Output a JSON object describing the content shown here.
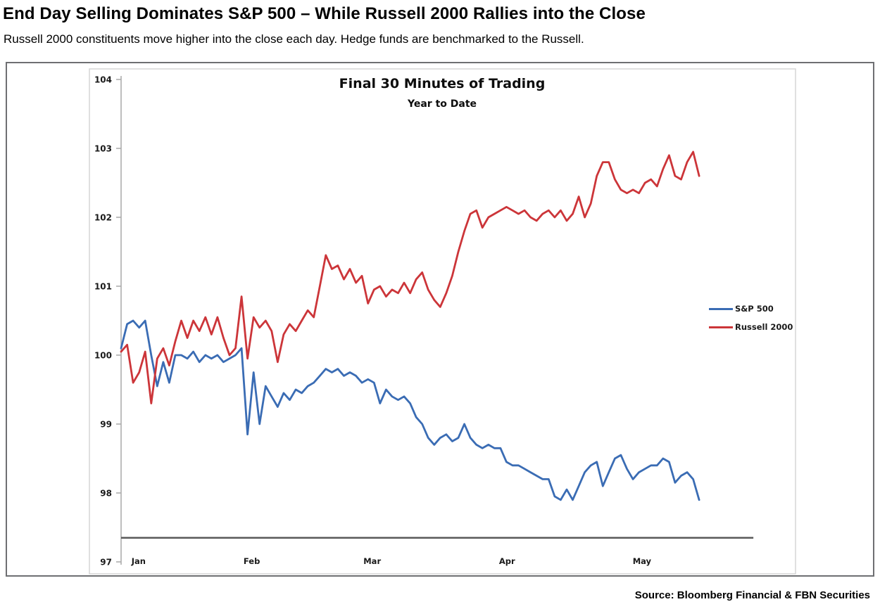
{
  "page": {
    "headline": "End Day Selling Dominates S&P 500 – While Russell 2000 Rallies into the Close",
    "subheadline": "Russell 2000 constituents move higher into the close each day. Hedge funds are benchmarked to the Russell.",
    "source": "Source: Bloomberg Financial & FBN Securities"
  },
  "chart_data": {
    "type": "line",
    "title": "Final 30 Minutes of Trading",
    "subtitle": "Year to Date",
    "xlabel": "",
    "ylabel": "",
    "grid": false,
    "legend_position": "right",
    "y_axis": {
      "min": 97,
      "max": 104,
      "step": 1,
      "tick_labels": [
        "104",
        "103",
        "102",
        "101",
        "100",
        "99",
        "98",
        "97"
      ]
    },
    "x_axis": {
      "unit": "trading-day index from start of year",
      "tick_labels": [
        "Jan",
        "Feb",
        "Mar",
        "Apr",
        "May"
      ],
      "tick_days": [
        2.9,
        21.7,
        41.7,
        64.1,
        86.5
      ],
      "axis_span_days": 112,
      "baseline_value": 97.35,
      "baseline_end_day": 105
    },
    "series": [
      {
        "name": "S&P 500",
        "color": "#3A6CB4",
        "values": [
          100.1,
          100.45,
          100.5,
          100.4,
          100.5,
          100.0,
          99.55,
          99.9,
          99.6,
          100.0,
          100.0,
          99.95,
          100.05,
          99.9,
          100.0,
          99.95,
          100.0,
          99.9,
          99.95,
          100.0,
          100.1,
          98.85,
          99.75,
          99.0,
          99.55,
          99.4,
          99.25,
          99.45,
          99.35,
          99.5,
          99.45,
          99.55,
          99.6,
          99.7,
          99.8,
          99.75,
          99.8,
          99.7,
          99.75,
          99.7,
          99.6,
          99.65,
          99.6,
          99.3,
          99.5,
          99.4,
          99.35,
          99.4,
          99.3,
          99.1,
          99.0,
          98.8,
          98.7,
          98.8,
          98.85,
          98.75,
          98.8,
          99.0,
          98.8,
          98.7,
          98.65,
          98.7,
          98.65,
          98.65,
          98.45,
          98.4,
          98.4,
          98.35,
          98.3,
          98.25,
          98.2,
          98.2,
          97.95,
          97.9,
          98.05,
          97.9,
          98.1,
          98.3,
          98.4,
          98.45,
          98.1,
          98.3,
          98.5,
          98.55,
          98.35,
          98.2,
          98.3,
          98.35,
          98.4,
          98.4,
          98.5,
          98.45,
          98.15,
          98.25,
          98.3,
          98.2,
          97.9
        ]
      },
      {
        "name": "Russell 2000",
        "color": "#CC3539",
        "values": [
          100.05,
          100.15,
          99.6,
          99.75,
          100.05,
          99.3,
          99.95,
          100.1,
          99.85,
          100.2,
          100.5,
          100.25,
          100.5,
          100.35,
          100.55,
          100.3,
          100.55,
          100.25,
          100.0,
          100.1,
          100.85,
          99.95,
          100.55,
          100.4,
          100.5,
          100.35,
          99.9,
          100.3,
          100.45,
          100.35,
          100.5,
          100.65,
          100.55,
          101.0,
          101.45,
          101.25,
          101.3,
          101.1,
          101.25,
          101.05,
          101.15,
          100.75,
          100.95,
          101.0,
          100.85,
          100.95,
          100.9,
          101.05,
          100.9,
          101.1,
          101.2,
          100.95,
          100.8,
          100.7,
          100.9,
          101.15,
          101.5,
          101.8,
          102.05,
          102.1,
          101.85,
          102.0,
          102.05,
          102.1,
          102.15,
          102.1,
          102.05,
          102.1,
          102.0,
          101.95,
          102.05,
          102.1,
          102.0,
          102.1,
          101.95,
          102.05,
          102.3,
          102.0,
          102.2,
          102.6,
          102.8,
          102.8,
          102.55,
          102.4,
          102.35,
          102.4,
          102.35,
          102.5,
          102.55,
          102.45,
          102.7,
          102.9,
          102.6,
          102.55,
          102.8,
          102.95,
          102.6
        ]
      }
    ]
  },
  "colors": {
    "axis_line": "#a8a8a8",
    "plot_frame": "#d6d6d6",
    "baseline": "#595959",
    "box_border": "#6e6f72",
    "tick_text": "#1a1a1a"
  }
}
